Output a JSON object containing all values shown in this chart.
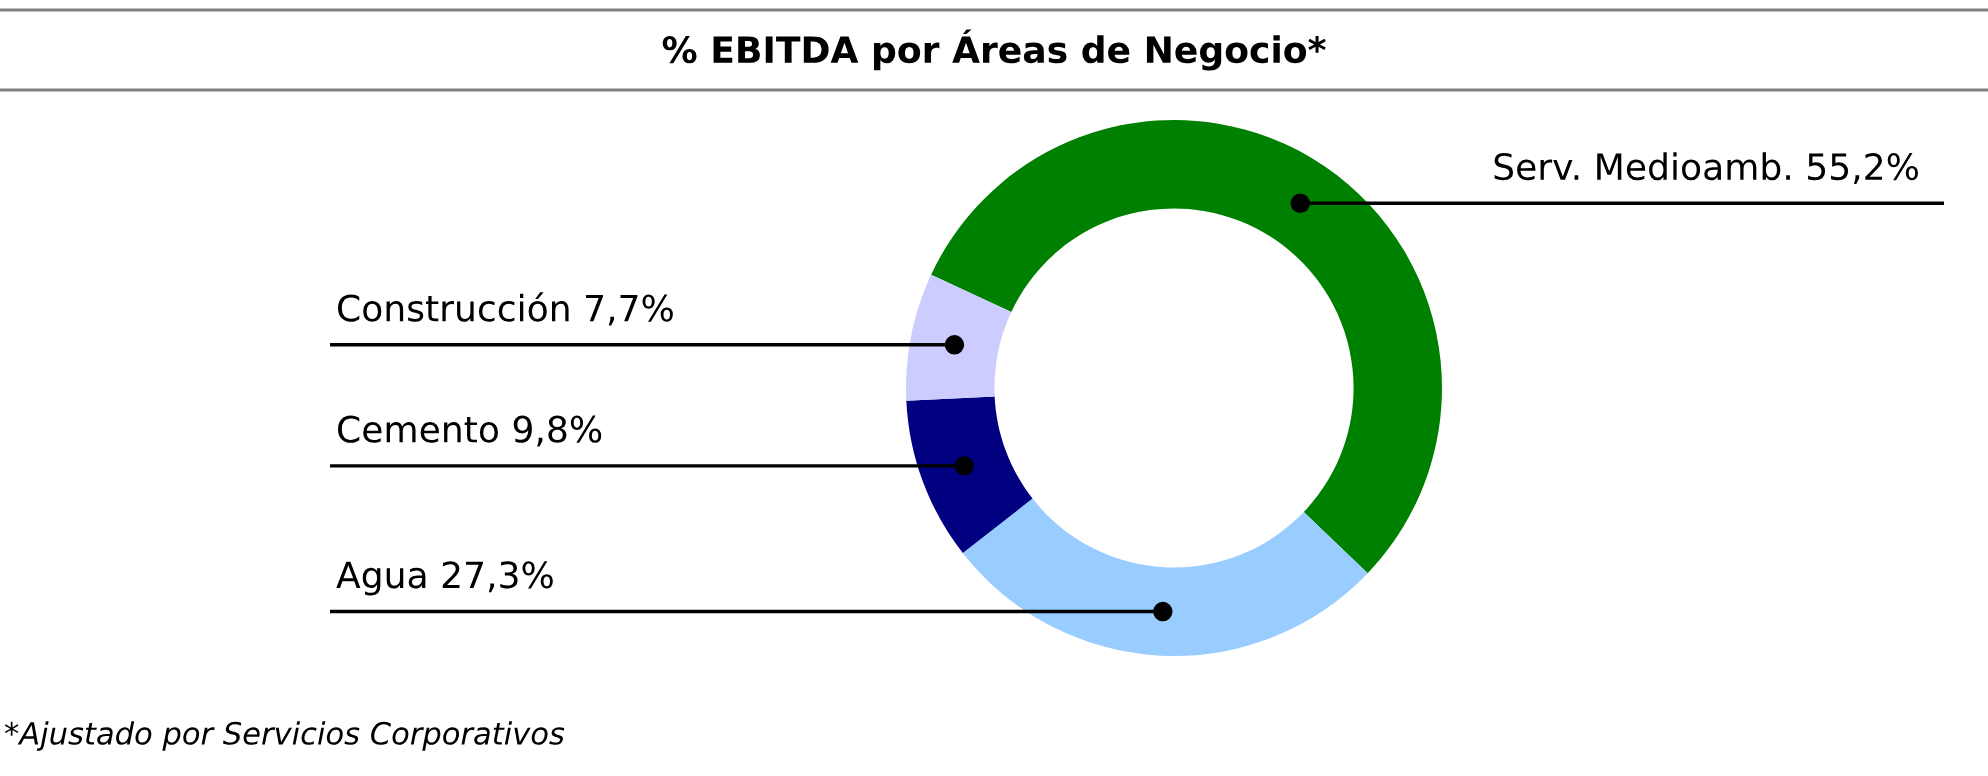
{
  "chart_data": {
    "type": "donut",
    "title": "% EBITDA por Áreas de Negocio*",
    "categories": [
      "Serv. Medioamb.",
      "Agua",
      "Cemento",
      "Construcción"
    ],
    "values": [
      55.2,
      27.3,
      9.8,
      7.7
    ],
    "value_labels": [
      "55,2%",
      "27,3%",
      "9,8%",
      "7,7%"
    ],
    "colors": [
      "#008000",
      "#99ccff",
      "#000080",
      "#ccccff"
    ],
    "legend": false,
    "annotations": [
      "*Ajustado por Servicios Corporativos"
    ]
  }
}
